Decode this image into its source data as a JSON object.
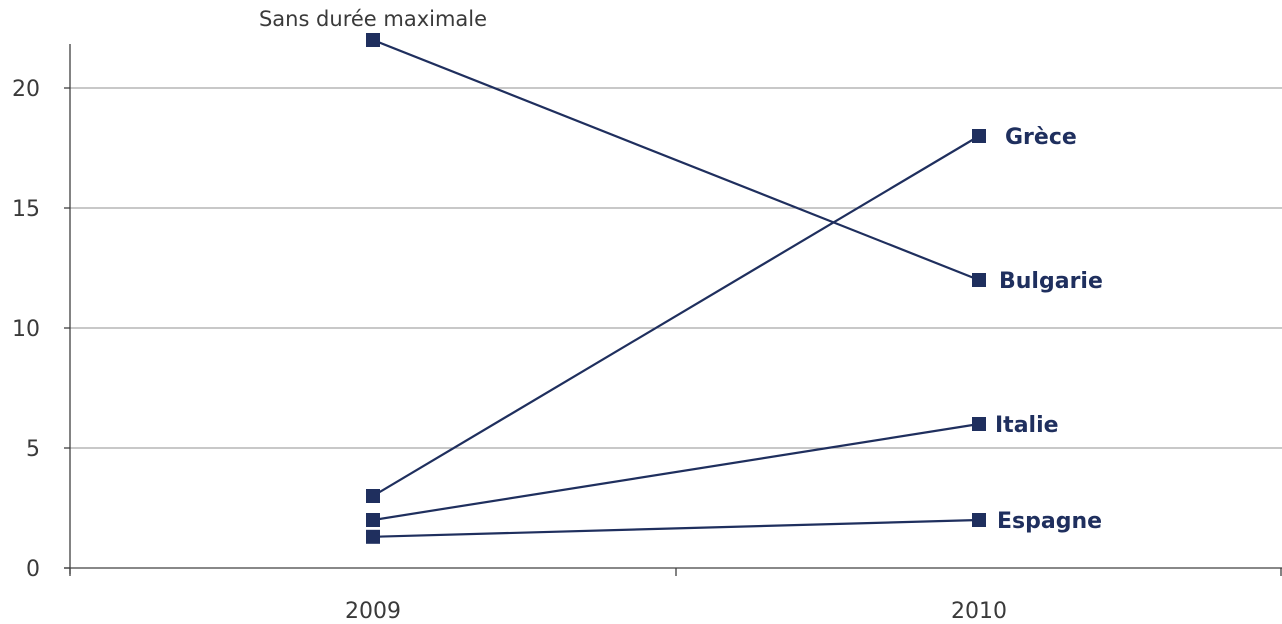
{
  "chart_data": {
    "type": "line",
    "x": [
      "2009",
      "2010"
    ],
    "ylim": [
      0,
      22
    ],
    "yticks": [
      0,
      5,
      10,
      15,
      20
    ],
    "grid": true,
    "color": "#1f2f5e",
    "annotation": "Sans durée maximale",
    "series": [
      {
        "name": "Grèce",
        "values": [
          3,
          18
        ]
      },
      {
        "name": "Bulgarie",
        "values": [
          22,
          12
        ]
      },
      {
        "name": "Italie",
        "values": [
          2,
          6
        ]
      },
      {
        "name": "Espagne",
        "values": [
          1.3,
          2
        ]
      }
    ]
  }
}
